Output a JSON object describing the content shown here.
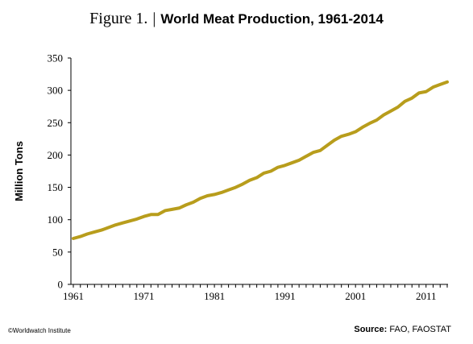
{
  "figure": {
    "label": "Figure 1.",
    "separator": "|",
    "title": "World Meat Production, 1961-2014"
  },
  "footer": {
    "credit": "©Worldwatch Institute",
    "source_label": "Source:",
    "source_text": "FAO, FAOSTAT"
  },
  "colors": {
    "line": "#b89d1c",
    "axis": "#000000"
  },
  "chart_data": {
    "type": "line",
    "title": "World Meat Production, 1961-2014",
    "xlabel": "",
    "ylabel": "Million Tons",
    "xlim": [
      1961,
      2014
    ],
    "ylim": [
      0,
      350
    ],
    "y_ticks": [
      0,
      50,
      100,
      150,
      200,
      250,
      300,
      350
    ],
    "x_ticks": [
      1961,
      1971,
      1981,
      1991,
      2001,
      2011
    ],
    "grid": false,
    "legend": "none",
    "series": [
      {
        "x": [
          1961,
          1962,
          1963,
          1964,
          1965,
          1966,
          1967,
          1968,
          1969,
          1970,
          1971,
          1972,
          1973,
          1974,
          1975,
          1976,
          1977,
          1978,
          1979,
          1980,
          1981,
          1982,
          1983,
          1984,
          1985,
          1986,
          1987,
          1988,
          1989,
          1990,
          1991,
          1992,
          1993,
          1994,
          1995,
          1996,
          1997,
          1998,
          1999,
          2000,
          2001,
          2002,
          2003,
          2004,
          2005,
          2006,
          2007,
          2008,
          2009,
          2010,
          2011,
          2012,
          2013,
          2014
        ],
        "values": [
          71,
          74,
          78,
          81,
          84,
          88,
          92,
          95,
          98,
          101,
          105,
          108,
          108,
          114,
          116,
          118,
          123,
          127,
          133,
          137,
          139,
          142,
          146,
          150,
          155,
          161,
          165,
          172,
          175,
          181,
          184,
          188,
          192,
          198,
          204,
          207,
          215,
          223,
          229,
          232,
          236,
          243,
          249,
          254,
          262,
          268,
          274,
          283,
          288,
          296,
          298,
          305,
          309,
          313
        ]
      }
    ]
  }
}
